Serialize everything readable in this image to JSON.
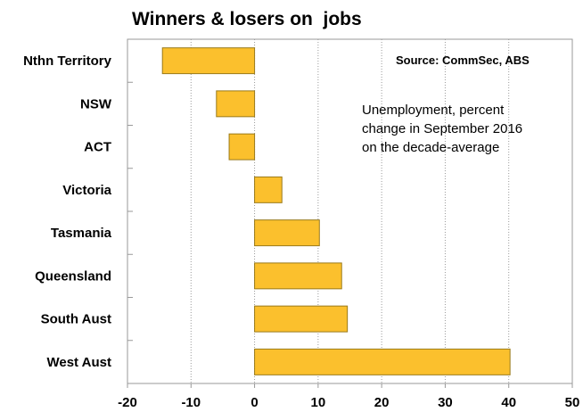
{
  "chart_data": {
    "type": "bar",
    "orientation": "horizontal",
    "title": "Winners & losers on  jobs",
    "source": "Source: CommSec, ABS",
    "annotation": [
      "Unemployment, percent",
      "change in September 2016",
      "on the decade-average"
    ],
    "categories": [
      "Nthn Territory",
      "NSW",
      "ACT",
      "Victoria",
      "Tasmania",
      "Queensland",
      "South Aust",
      "West Aust"
    ],
    "values": [
      -14.5,
      -6,
      -4,
      4.3,
      10.2,
      13.7,
      14.6,
      40.2
    ],
    "xlim": [
      -20,
      50
    ],
    "xticks": [
      -20,
      -10,
      0,
      10,
      20,
      30,
      40,
      50
    ],
    "xtick_labels": [
      "-20",
      "-10",
      "0",
      "10",
      "20",
      "30",
      "40",
      "50"
    ],
    "grid": "vertical dotted",
    "bar_color": "#FBC02D",
    "bar_edge_color": "#9A7A1A",
    "axis_color": "#999999",
    "grid_color": "#9A9A9A"
  }
}
